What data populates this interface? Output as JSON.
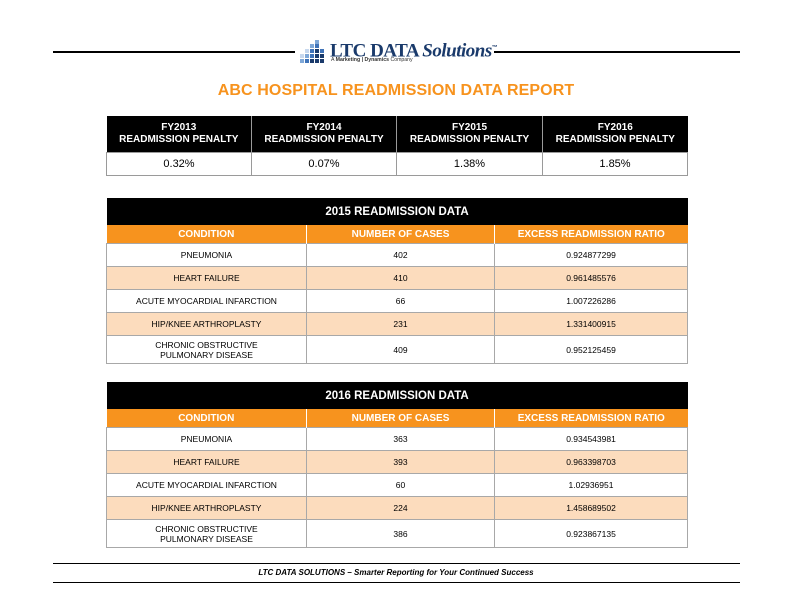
{
  "header": {
    "logo_main": "LTC DATA",
    "logo_italic": "Solutions",
    "logo_tm": "™",
    "logo_tag_prefix": "A",
    "logo_tag_brand": "Marketing | Dynamics",
    "logo_tag_suffix": "Company",
    "logo_colors": [
      "#7fa8d8",
      "#3f73b8",
      "#1a3a6b"
    ]
  },
  "report_title": "ABC HOSPITAL READMISSION DATA REPORT",
  "penalties": {
    "headers": [
      {
        "line1": "FY2013",
        "line2": "READMISSION PENALTY"
      },
      {
        "line1": "FY2014",
        "line2": "READMISSION PENALTY"
      },
      {
        "line1": "FY2015",
        "line2": "READMISSION PENALTY"
      },
      {
        "line1": "FY2016",
        "line2": "READMISSION PENALTY"
      }
    ],
    "values": [
      "0.32%",
      "0.07%",
      "1.38%",
      "1.85%"
    ]
  },
  "data_2015": {
    "caption": "2015 READMISSION DATA",
    "columns": [
      "CONDITION",
      "NUMBER OF CASES",
      "EXCESS READMISSION RATIO"
    ],
    "rows": [
      {
        "condition": "PNEUMONIA",
        "cases": "402",
        "ratio": "0.924877299"
      },
      {
        "condition": "HEART FAILURE",
        "cases": "410",
        "ratio": "0.961485576"
      },
      {
        "condition": "ACUTE MYOCARDIAL INFARCTION",
        "cases": "66",
        "ratio": "1.007226286"
      },
      {
        "condition": "HIP/KNEE ARTHROPLASTY",
        "cases": "231",
        "ratio": "1.331400915"
      },
      {
        "condition_line1": "CHRONIC OBSTRUCTIVE",
        "condition_line2": "PULMONARY DISEASE",
        "cases": "409",
        "ratio": "0.952125459"
      }
    ]
  },
  "data_2016": {
    "caption": "2016 READMISSION DATA",
    "columns": [
      "CONDITION",
      "NUMBER OF CASES",
      "EXCESS READMISSION RATIO"
    ],
    "rows": [
      {
        "condition": "PNEUMONIA",
        "cases": "363",
        "ratio": "0.934543981"
      },
      {
        "condition": "HEART FAILURE",
        "cases": "393",
        "ratio": "0.963398703"
      },
      {
        "condition": "ACUTE MYOCARDIAL INFARCTION",
        "cases": "60",
        "ratio": "1.02936951"
      },
      {
        "condition": "HIP/KNEE ARTHROPLASTY",
        "cases": "224",
        "ratio": "1.458689502"
      },
      {
        "condition_line1": "CHRONIC OBSTRUCTIVE",
        "condition_line2": "PULMONARY DISEASE",
        "cases": "386",
        "ratio": "0.923867135"
      }
    ]
  },
  "colors": {
    "accent_orange": "#f7931e",
    "row_alt": "#fcdcbd",
    "header_black": "#000000"
  },
  "footer": {
    "text": "LTC DATA SOLUTIONS  –  Smarter Reporting for Your Continued Success"
  }
}
